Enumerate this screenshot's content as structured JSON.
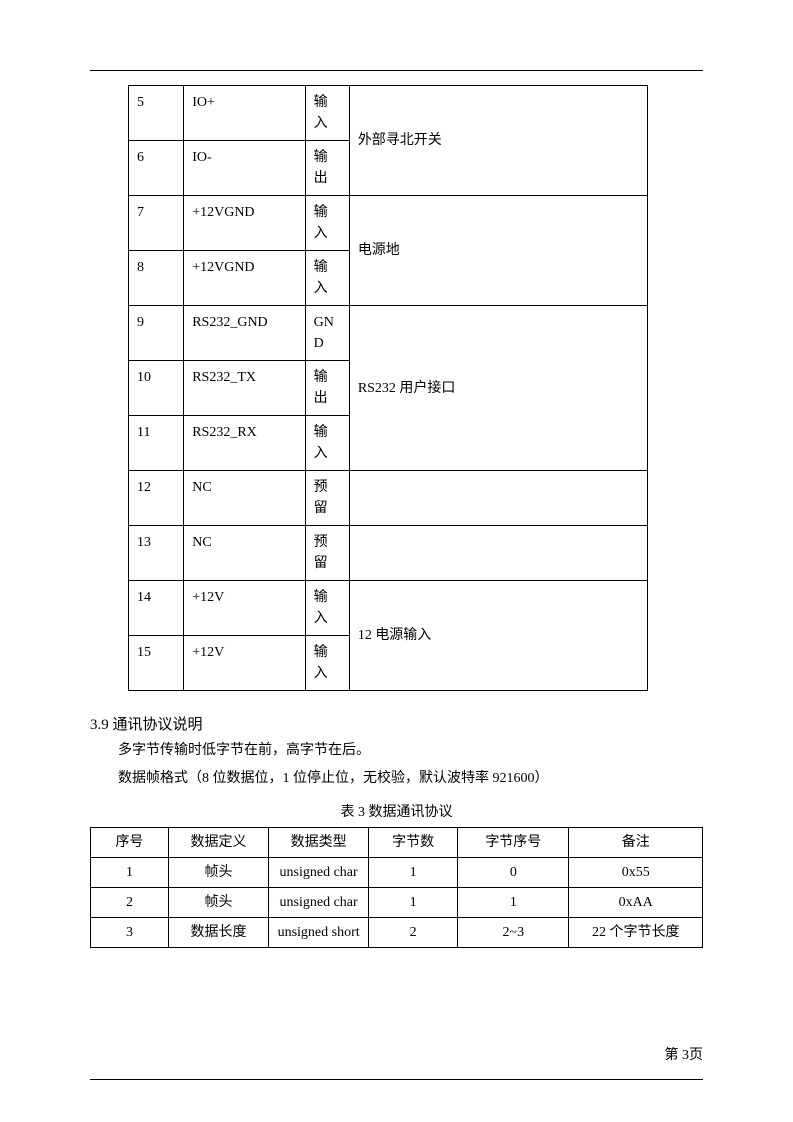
{
  "table1": {
    "rows": [
      {
        "num": "5",
        "name": "IO+",
        "dir": "输入",
        "desc": "外部寻北开关",
        "group": "g1"
      },
      {
        "num": "6",
        "name": "IO-",
        "dir": "输出",
        "desc": "",
        "group": "g1"
      },
      {
        "num": "7",
        "name": "+12VGND",
        "dir": "输入",
        "desc": "电源地",
        "group": "g2"
      },
      {
        "num": "8",
        "name": "+12VGND",
        "dir": "输入",
        "desc": "",
        "group": "g2"
      },
      {
        "num": "9",
        "name": "RS232_GND",
        "dir": "GND",
        "desc": "RS232 用户接口",
        "group": "g3"
      },
      {
        "num": "10",
        "name": "RS232_TX",
        "dir": "输出",
        "desc": "",
        "group": "g3"
      },
      {
        "num": "11",
        "name": "RS232_RX",
        "dir": "输入",
        "desc": "",
        "group": "g3"
      },
      {
        "num": "12",
        "name": "NC",
        "dir": "预留",
        "desc": "",
        "group": "s1"
      },
      {
        "num": "13",
        "name": "NC",
        "dir": "预留",
        "desc": "",
        "group": "s2"
      },
      {
        "num": "14",
        "name": "+12V",
        "dir": "输入",
        "desc": "12 电源输入",
        "group": "g4"
      },
      {
        "num": "15",
        "name": "+12V",
        "dir": "输入",
        "desc": "",
        "group": "g4"
      }
    ],
    "groups": {
      "g1": {
        "desc": "外部寻北开关",
        "span": 2
      },
      "g2": {
        "desc": "电源地",
        "span": 2
      },
      "g3": {
        "desc": "RS232 用户接口",
        "span": 3
      },
      "s1": {
        "desc": "",
        "span": 1
      },
      "s2": {
        "desc": "",
        "span": 1
      },
      "g4": {
        "desc": "12 电源输入",
        "span": 2
      }
    }
  },
  "section": {
    "number": "3.9",
    "title": "通讯协议说明",
    "para1": "多字节传输时低字节在前，高字节在后。",
    "para2": "数据帧格式（8 位数据位，1 位停止位，无校验，默认波特率 921600）",
    "caption": "表 3 数据通讯协议"
  },
  "table2": {
    "headers": [
      "序号",
      "数据定义",
      "数据类型",
      "字节数",
      "字节序号",
      "备注"
    ],
    "rows": [
      [
        "1",
        "帧头",
        "unsigned char",
        "1",
        "0",
        "0x55"
      ],
      [
        "2",
        "帧头",
        "unsigned char",
        "1",
        "1",
        "0xAA"
      ],
      [
        "3",
        "数据长度",
        "unsigned short",
        "2",
        "2~3",
        "22 个字节长度"
      ]
    ]
  },
  "footer": {
    "page": "第 3页"
  }
}
